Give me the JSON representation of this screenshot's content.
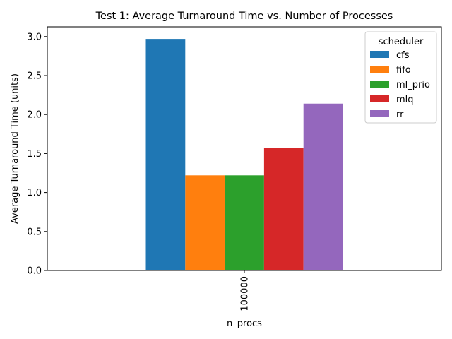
{
  "chart_data": {
    "type": "bar",
    "title": "Test 1: Average Turnaround Time vs. Number of Processes",
    "xlabel": "n_procs",
    "ylabel": "Average Turnaround Time (units)",
    "categories": [
      "100000"
    ],
    "ylim": [
      0,
      3.125
    ],
    "yticks": [
      "0.0",
      "0.5",
      "1.0",
      "1.5",
      "2.0",
      "2.5",
      "3.0"
    ],
    "grid": false,
    "legend": {
      "title": "scheduler",
      "placement": "top-right"
    },
    "series": [
      {
        "name": "cfs",
        "values": [
          2.97
        ],
        "color": "#1f77b4"
      },
      {
        "name": "fifo",
        "values": [
          1.22
        ],
        "color": "#ff7f0e"
      },
      {
        "name": "ml_prio",
        "values": [
          1.22
        ],
        "color": "#2ca02c"
      },
      {
        "name": "mlq",
        "values": [
          1.57
        ],
        "color": "#d62728"
      },
      {
        "name": "rr",
        "values": [
          2.14
        ],
        "color": "#9467bd"
      }
    ]
  }
}
